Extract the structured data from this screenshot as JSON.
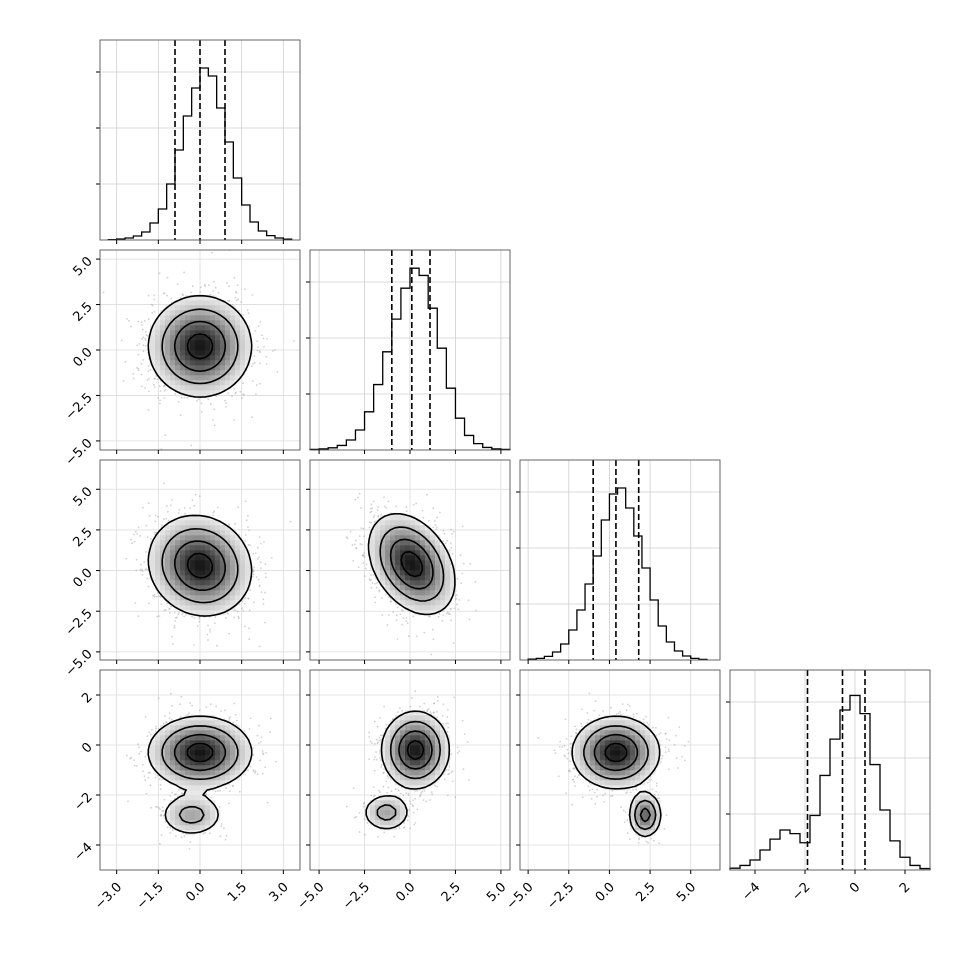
{
  "chart_data": {
    "type": "corner",
    "dimensions": 4,
    "grid": true,
    "quantile_lines": "dashed",
    "axes": [
      {
        "range": [
          -3.6,
          3.6
        ],
        "ticks": [
          -3.0,
          -1.5,
          0.0,
          1.5,
          3.0
        ],
        "tick_labels": [
          "−3.0",
          "−1.5",
          "0.0",
          "1.5",
          "3.0"
        ],
        "quantiles": [
          -0.9,
          0.0,
          0.9
        ],
        "hist_bins": [
          -3.3,
          -3.0,
          -2.7,
          -2.4,
          -2.1,
          -1.8,
          -1.5,
          -1.2,
          -0.9,
          -0.6,
          -0.3,
          0.0,
          0.3,
          0.6,
          0.9,
          1.2,
          1.5,
          1.8,
          2.1,
          2.4,
          2.7,
          3.0,
          3.3
        ],
        "hist_counts": [
          2,
          5,
          10,
          20,
          40,
          85,
          155,
          280,
          450,
          620,
          760,
          860,
          820,
          660,
          490,
          310,
          175,
          90,
          45,
          22,
          10,
          4
        ]
      },
      {
        "range": [
          -5.5,
          5.5
        ],
        "ticks": [
          -5.0,
          -2.5,
          0.0,
          2.5,
          5.0
        ],
        "tick_labels": [
          "−5.0",
          "−2.5",
          "0.0",
          "2.5",
          "5.0"
        ],
        "quantiles": [
          -1.0,
          0.1,
          1.1
        ],
        "hist_bins": [
          -5.5,
          -5.0,
          -4.5,
          -4.0,
          -3.5,
          -3.0,
          -2.5,
          -2.0,
          -1.5,
          -1.0,
          -0.5,
          0.0,
          0.5,
          1.0,
          1.5,
          2.0,
          2.5,
          3.0,
          3.5,
          4.0,
          4.5,
          5.0,
          5.5
        ],
        "hist_counts": [
          3,
          6,
          12,
          25,
          55,
          110,
          210,
          360,
          540,
          720,
          890,
          1000,
          960,
          780,
          560,
          340,
          175,
          80,
          35,
          14,
          6,
          3
        ]
      },
      {
        "range": [
          -5.5,
          6.8
        ],
        "ticks": [
          -5.0,
          -2.5,
          0.0,
          2.5,
          5.0
        ],
        "tick_labels": [
          "−5.0",
          "−2.5",
          "0.0",
          "2.5",
          "5.0"
        ],
        "quantiles": [
          -1.0,
          0.4,
          1.8
        ],
        "hist_bins": [
          -5.0,
          -4.5,
          -4.0,
          -3.5,
          -3.0,
          -2.5,
          -2.0,
          -1.5,
          -1.0,
          -0.5,
          0.0,
          0.5,
          1.0,
          1.5,
          2.0,
          2.5,
          3.0,
          3.5,
          4.0,
          4.5,
          5.0,
          5.5,
          6.0
        ],
        "hist_counts": [
          4,
          8,
          18,
          40,
          80,
          150,
          250,
          380,
          520,
          700,
          830,
          860,
          760,
          620,
          460,
          300,
          170,
          90,
          45,
          20,
          8,
          3
        ]
      },
      {
        "range": [
          -5.0,
          3.0
        ],
        "ticks": [
          -4,
          -2,
          0,
          2
        ],
        "tick_labels": [
          "−4",
          "−2",
          "0",
          "2"
        ],
        "quantiles": [
          -1.9,
          -0.5,
          0.4
        ],
        "hist_bins": [
          -5.0,
          -4.6,
          -4.2,
          -3.8,
          -3.4,
          -3.0,
          -2.6,
          -2.2,
          -1.8,
          -1.4,
          -1.0,
          -0.6,
          -0.2,
          0.2,
          0.6,
          1.0,
          1.4,
          1.8,
          2.2,
          2.6,
          3.0
        ],
        "hist_counts": [
          10,
          25,
          55,
          110,
          170,
          220,
          200,
          150,
          300,
          520,
          720,
          880,
          960,
          860,
          580,
          330,
          160,
          70,
          25,
          8
        ]
      }
    ],
    "hist_max": [
      1000,
      1100,
      1000,
      1100
    ],
    "pairs": [
      {
        "ix": 0,
        "iy": 1,
        "components": [
          {
            "mx": 0.0,
            "my": 0.2,
            "sx": 0.9,
            "sy": 1.35,
            "rho": 0.0,
            "w": 1.0
          }
        ]
      },
      {
        "ix": 0,
        "iy": 2,
        "components": [
          {
            "mx": 0.0,
            "my": 0.3,
            "sx": 0.9,
            "sy": 1.5,
            "rho": -0.1,
            "w": 1.0
          }
        ]
      },
      {
        "ix": 1,
        "iy": 2,
        "components": [
          {
            "mx": 0.1,
            "my": 0.4,
            "sx": 1.15,
            "sy": 1.5,
            "rho": -0.35,
            "w": 1.0
          }
        ]
      },
      {
        "ix": 0,
        "iy": 3,
        "components": [
          {
            "mx": 0.0,
            "my": -0.3,
            "sx": 0.9,
            "sy": 0.7,
            "rho": 0.0,
            "w": 0.85
          },
          {
            "mx": -0.3,
            "my": -2.8,
            "sx": 0.6,
            "sy": 0.45,
            "rho": 0.0,
            "w": 0.15
          }
        ]
      },
      {
        "ix": 1,
        "iy": 3,
        "components": [
          {
            "mx": 0.3,
            "my": -0.2,
            "sx": 0.9,
            "sy": 0.75,
            "rho": 0.0,
            "w": 0.85
          },
          {
            "mx": -1.3,
            "my": -2.7,
            "sx": 0.7,
            "sy": 0.4,
            "rho": 0.0,
            "w": 0.15
          }
        ]
      },
      {
        "ix": 2,
        "iy": 3,
        "components": [
          {
            "mx": 0.4,
            "my": -0.3,
            "sx": 1.3,
            "sy": 0.7,
            "rho": 0.0,
            "w": 0.85
          },
          {
            "mx": 2.2,
            "my": -2.8,
            "sx": 0.5,
            "sy": 0.45,
            "rho": 0.0,
            "w": 0.15
          }
        ]
      }
    ]
  }
}
